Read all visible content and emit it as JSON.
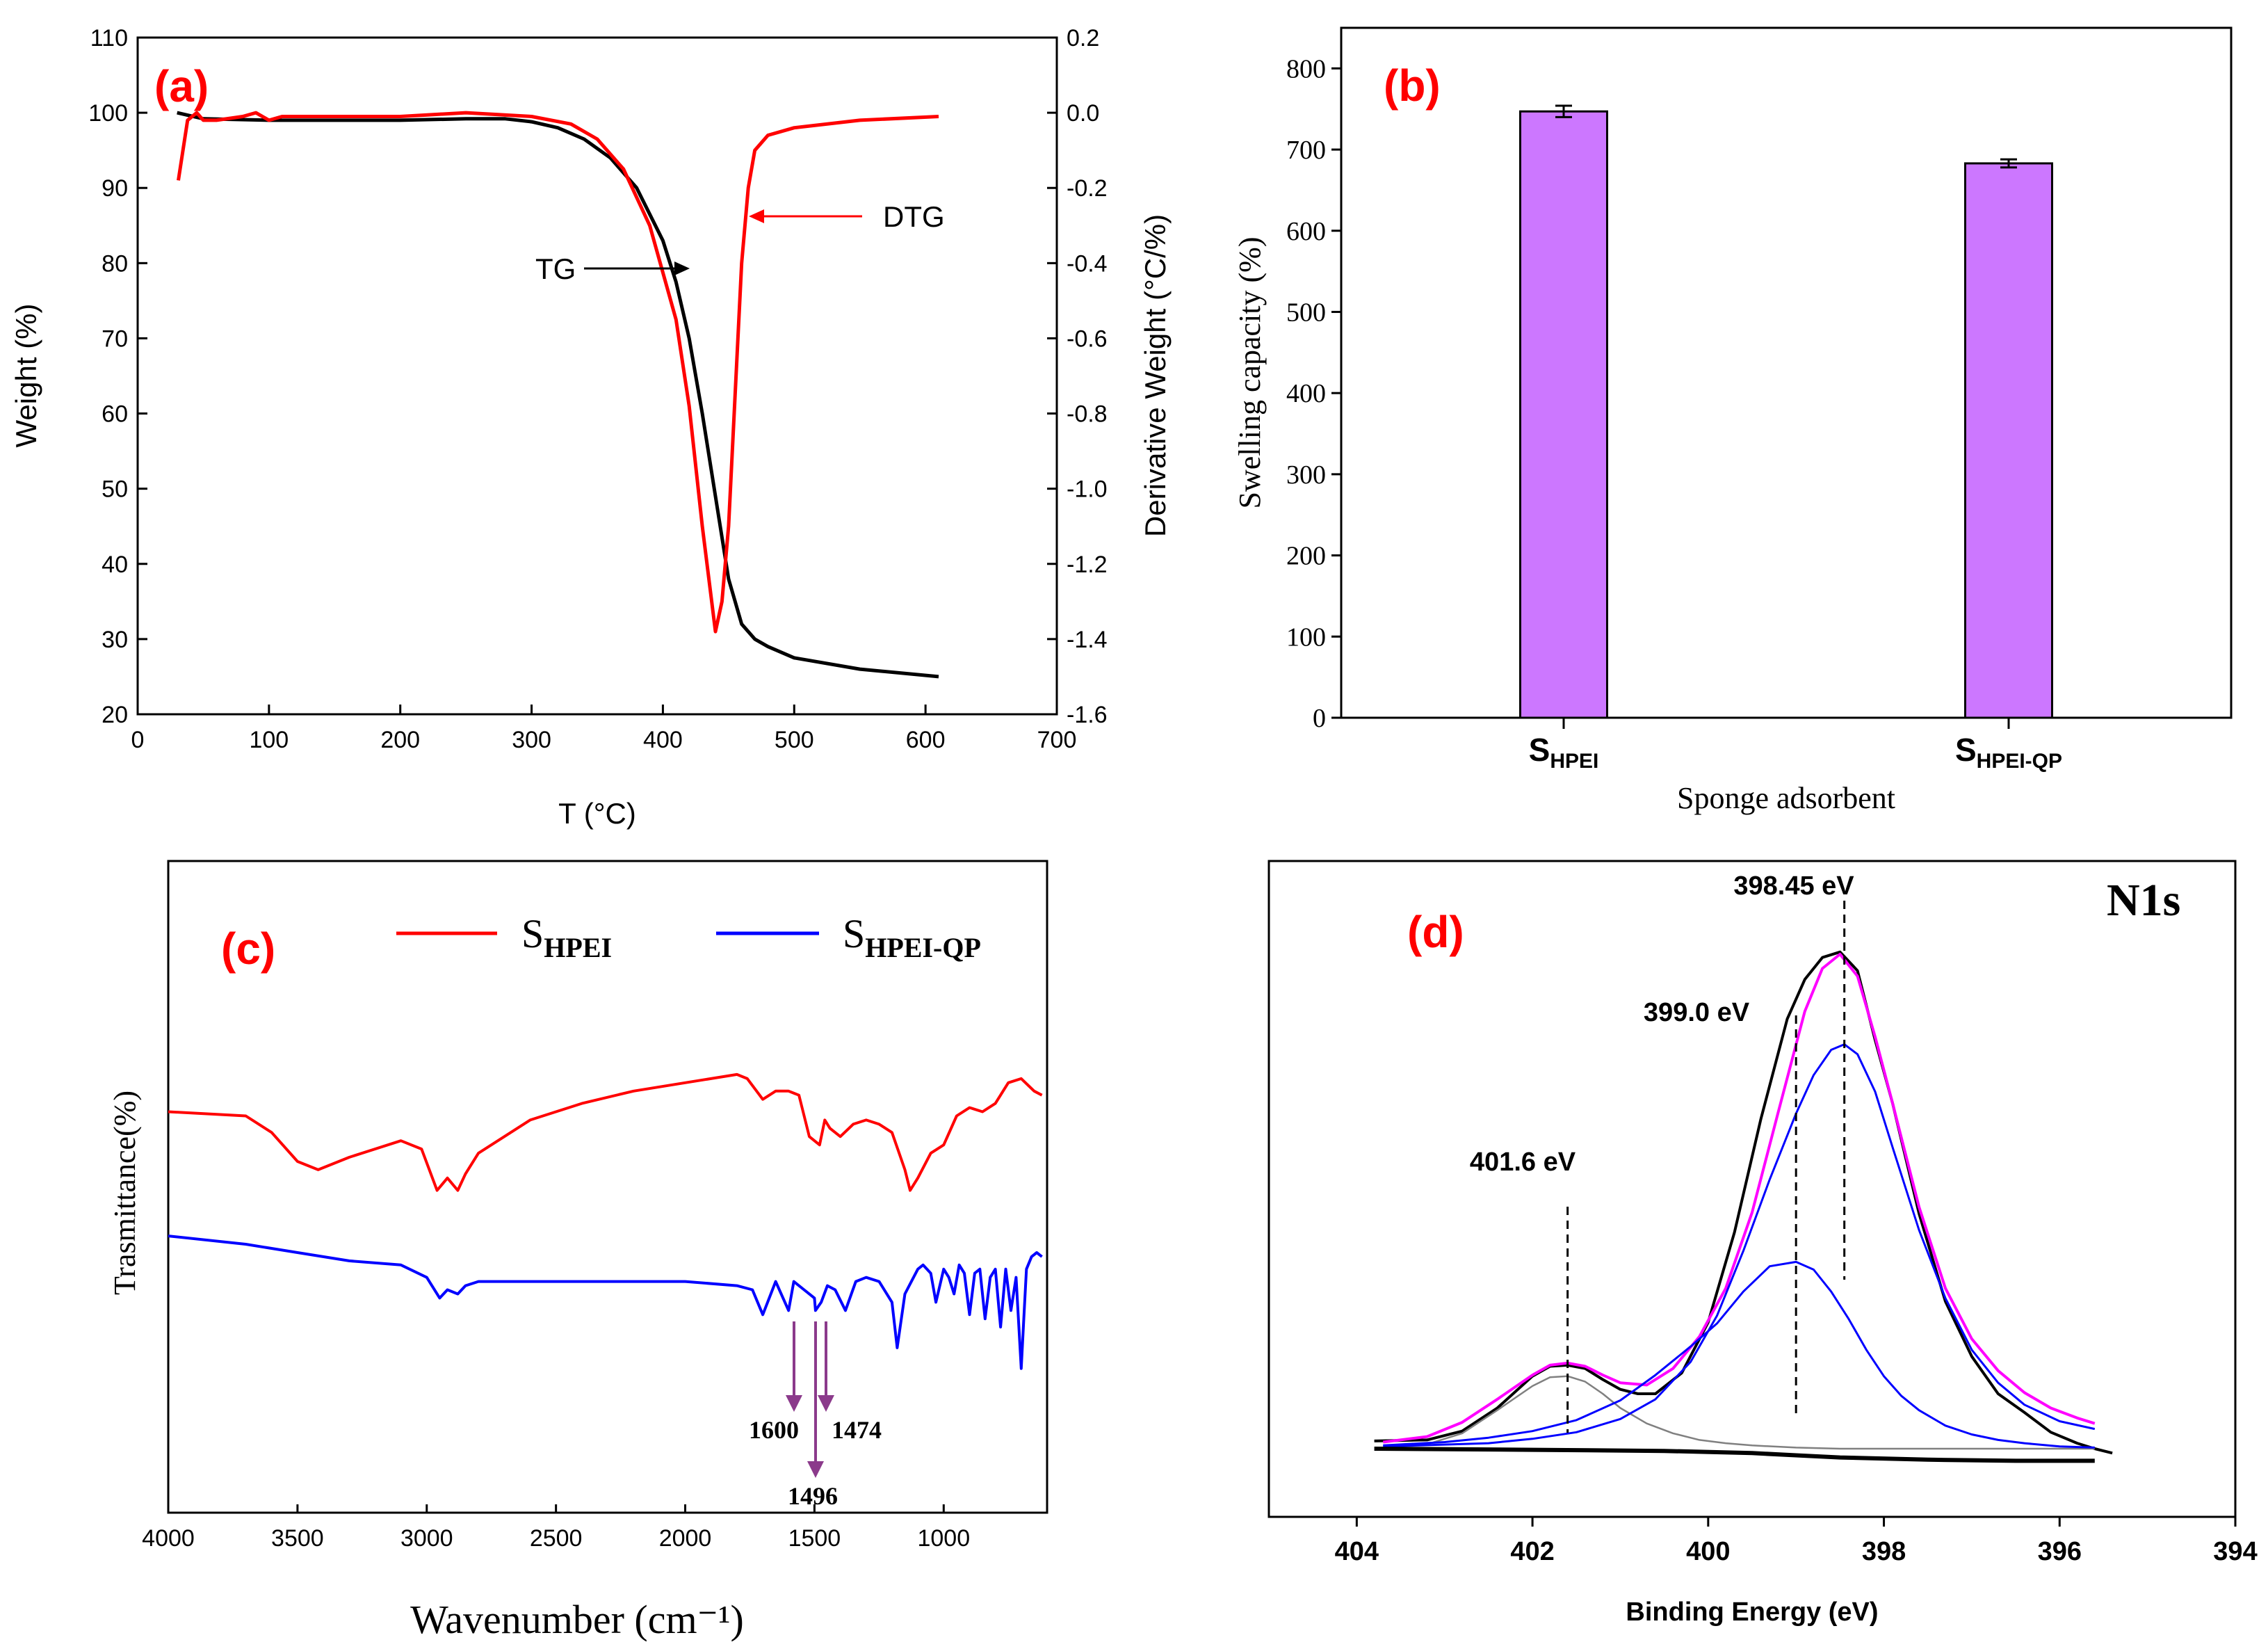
{
  "chart_data": [
    {
      "panel": "(a)",
      "type": "line",
      "xlabel": "T (°C)",
      "ylabel": "Weight (%)",
      "y2label": "Derivative Weight (°C/%)",
      "xlim": [
        0,
        700
      ],
      "ylim": [
        20,
        110
      ],
      "y2lim": [
        -1.6,
        0.2
      ],
      "xticks": [
        "0",
        "100",
        "200",
        "300",
        "400",
        "500",
        "600",
        "700"
      ],
      "yticks": [
        "20",
        "30",
        "40",
        "50",
        "60",
        "70",
        "80",
        "90",
        "100",
        "110"
      ],
      "y2ticks": [
        "-1.6",
        "-1.4",
        "-1.2",
        "-1.0",
        "-0.8",
        "-0.6",
        "-0.4",
        "-0.2",
        "0.0",
        "0.2"
      ],
      "series": [
        {
          "name": "TG",
          "axis": "left",
          "color": "#000000",
          "x": [
            30,
            50,
            100,
            150,
            200,
            250,
            280,
            300,
            320,
            340,
            360,
            380,
            400,
            410,
            420,
            430,
            440,
            450,
            460,
            470,
            480,
            500,
            550,
            610
          ],
          "y": [
            100,
            99.2,
            99,
            99,
            99,
            99.2,
            99.2,
            98.8,
            98,
            96.5,
            94,
            90,
            83,
            77.5,
            70,
            60,
            49,
            38,
            32,
            30,
            29,
            27.5,
            26,
            25
          ]
        },
        {
          "name": "DTG",
          "axis": "right",
          "color": "#ff0000",
          "x": [
            31,
            38,
            45,
            50,
            60,
            80,
            90,
            100,
            110,
            150,
            200,
            250,
            300,
            330,
            350,
            370,
            390,
            410,
            420,
            430,
            440,
            445,
            450,
            455,
            460,
            465,
            470,
            480,
            500,
            550,
            610
          ],
          "y": [
            -0.18,
            -0.02,
            0.0,
            -0.02,
            -0.02,
            -0.01,
            0.0,
            -0.02,
            -0.01,
            -0.01,
            -0.01,
            0.0,
            -0.01,
            -0.03,
            -0.07,
            -0.15,
            -0.3,
            -0.55,
            -0.78,
            -1.1,
            -1.38,
            -1.3,
            -1.1,
            -0.75,
            -0.4,
            -0.2,
            -0.1,
            -0.06,
            -0.04,
            -0.02,
            -0.01
          ]
        }
      ],
      "annotations": [
        {
          "text": "TG",
          "color": "#000000"
        },
        {
          "text": "DTG",
          "color": "#ff0000"
        }
      ]
    },
    {
      "panel": "(b)",
      "type": "bar",
      "xlabel": "Sponge adsorbent",
      "ylabel": "Swelling capacity (%)",
      "ylim": [
        0,
        850
      ],
      "yticks": [
        "0",
        "100",
        "200",
        "300",
        "400",
        "500",
        "600",
        "700",
        "800"
      ],
      "categories": [
        {
          "base": "S",
          "sub": "HPEI"
        },
        {
          "base": "S",
          "sub": "HPEI-QP"
        }
      ],
      "values": [
        747,
        683
      ],
      "errors": [
        7,
        5
      ],
      "bar_color": "#cc77ff"
    },
    {
      "panel": "(c)",
      "type": "line",
      "xlabel": "Wavenumber (cm⁻¹)",
      "ylabel": "Trasmittance(%)",
      "xlim": [
        4000,
        600
      ],
      "xticks": [
        "4000",
        "3500",
        "3000",
        "2500",
        "2000",
        "1500",
        "1000"
      ],
      "legend": [
        {
          "base": "S",
          "sub": "HPEI",
          "color": "#ff0000"
        },
        {
          "base": "S",
          "sub": "HPEI-QP",
          "color": "#0000ff"
        }
      ],
      "series": [
        {
          "color": "#ff0000",
          "x": [
            4000,
            3700,
            3600,
            3500,
            3420,
            3300,
            3100,
            3020,
            2960,
            2920,
            2880,
            2850,
            2800,
            2600,
            2400,
            2200,
            2000,
            1800,
            1760,
            1700,
            1650,
            1600,
            1560,
            1520,
            1480,
            1460,
            1440,
            1400,
            1350,
            1300,
            1250,
            1200,
            1150,
            1130,
            1100,
            1050,
            1000,
            950,
            900,
            850,
            800,
            750,
            700,
            650,
            620
          ],
          "y": [
            98,
            97,
            93,
            86,
            84,
            87,
            91,
            89,
            79,
            82,
            79,
            83,
            88,
            96,
            100,
            103,
            105,
            107,
            106,
            101,
            103,
            103,
            102,
            92,
            90,
            96,
            94,
            92,
            95,
            96,
            95,
            93,
            84,
            79,
            82,
            88,
            90,
            97,
            99,
            98,
            100,
            105,
            106,
            103,
            102
          ]
        },
        {
          "color": "#0000ff",
          "x": [
            4000,
            3700,
            3500,
            3300,
            3100,
            3000,
            2950,
            2920,
            2880,
            2850,
            2800,
            2600,
            2400,
            2200,
            2000,
            1800,
            1740,
            1700,
            1650,
            1600,
            1580,
            1540,
            1500,
            1496,
            1474,
            1450,
            1420,
            1380,
            1340,
            1300,
            1250,
            1200,
            1180,
            1150,
            1100,
            1080,
            1050,
            1030,
            1000,
            980,
            960,
            940,
            920,
            900,
            880,
            860,
            840,
            820,
            800,
            780,
            760,
            740,
            720,
            700,
            690,
            680,
            660,
            640,
            620
          ],
          "y": [
            68,
            66,
            64,
            62,
            61,
            58,
            53,
            55,
            54,
            56,
            57,
            57,
            57,
            57,
            57,
            56,
            55,
            49,
            57,
            50,
            57,
            55,
            53,
            50,
            52,
            56,
            55,
            50,
            57,
            58,
            57,
            52,
            41,
            54,
            60,
            61,
            59,
            52,
            60,
            58,
            54,
            61,
            59,
            49,
            59,
            60,
            48,
            58,
            60,
            46,
            60,
            50,
            58,
            36,
            48,
            60,
            63,
            64,
            63
          ]
        }
      ],
      "annotations": [
        "1600",
        "1496",
        "1474"
      ]
    },
    {
      "panel": "(d)",
      "type": "line",
      "xlabel": "Binding Energy (eV)",
      "title": "N1s",
      "xlim": [
        405,
        394
      ],
      "xticks": [
        "404",
        "402",
        "400",
        "398",
        "396",
        "394"
      ],
      "series": [
        {
          "color": "#000000",
          "x": [
            403.8,
            403.2,
            402.8,
            402.4,
            402.0,
            401.8,
            401.6,
            401.4,
            401.2,
            401.0,
            400.8,
            400.6,
            400.3,
            400.0,
            399.7,
            399.4,
            399.1,
            398.9,
            398.7,
            398.5,
            398.3,
            398.1,
            397.9,
            397.6,
            397.3,
            397.0,
            396.7,
            396.4,
            396.1,
            395.8,
            395.6,
            395.4
          ],
          "y": [
            0.7,
            0.8,
            1.6,
            3.7,
            6.6,
            7.5,
            7.6,
            7.3,
            6.3,
            5.4,
            5.0,
            5.0,
            6.9,
            11.5,
            19.7,
            30.0,
            39.1,
            42.7,
            44.7,
            45.2,
            43.5,
            37.2,
            31.4,
            21.4,
            13.4,
            8.4,
            5.0,
            3.3,
            1.5,
            0.5,
            0.0,
            -0.4
          ]
        },
        {
          "color": "#ff00ff",
          "x": [
            403.7,
            403.2,
            402.8,
            402.4,
            402.0,
            401.8,
            401.6,
            401.4,
            401.2,
            401.0,
            400.7,
            400.4,
            400.1,
            399.8,
            399.5,
            399.2,
            398.9,
            398.7,
            398.5,
            398.3,
            398.1,
            397.9,
            397.6,
            397.3,
            397.0,
            396.7,
            396.4,
            396.1,
            395.8,
            395.6
          ],
          "y": [
            0.6,
            1.1,
            2.4,
            4.5,
            6.7,
            7.6,
            7.8,
            7.5,
            6.7,
            6.0,
            5.8,
            7.3,
            10.2,
            14.6,
            21.5,
            30.7,
            39.8,
            43.7,
            45.0,
            43.0,
            37.5,
            31.4,
            22.0,
            14.6,
            10.0,
            7.1,
            5.1,
            3.7,
            2.8,
            2.3
          ]
        },
        {
          "color": "#808080",
          "x": [
            403.7,
            403.2,
            402.8,
            402.4,
            402.0,
            401.8,
            401.6,
            401.4,
            401.2,
            401.0,
            400.7,
            400.4,
            400.1,
            399.8,
            399.5,
            399.0,
            398.5,
            398.0,
            397.5,
            397.0,
            396.5,
            396.0,
            395.6
          ],
          "y": [
            0.1,
            0.4,
            1.4,
            3.5,
            5.7,
            6.5,
            6.6,
            6.1,
            5.0,
            3.7,
            2.3,
            1.4,
            0.8,
            0.5,
            0.3,
            0.1,
            0.0,
            0.0,
            0.0,
            0.0,
            0.0,
            0.0,
            0.0
          ]
        },
        {
          "color": "#0000ff",
          "x": [
            403.7,
            403.0,
            402.5,
            402.0,
            401.5,
            401.0,
            400.6,
            400.2,
            399.9,
            399.6,
            399.3,
            399.0,
            398.8,
            398.6,
            398.4,
            398.2,
            398.0,
            397.8,
            397.6,
            397.3,
            397.0,
            396.7,
            396.4,
            396.0,
            395.6
          ],
          "y": [
            0.3,
            0.6,
            1.0,
            1.6,
            2.6,
            4.4,
            6.7,
            9.3,
            11.4,
            14.3,
            16.6,
            17.0,
            16.3,
            14.3,
            11.8,
            9.0,
            6.6,
            4.8,
            3.5,
            2.1,
            1.3,
            0.8,
            0.5,
            0.2,
            0.1
          ]
        },
        {
          "color": "#0000ff",
          "x": [
            403.7,
            402.5,
            402.0,
            401.5,
            401.0,
            400.6,
            400.2,
            399.9,
            399.6,
            399.3,
            399.0,
            398.8,
            398.6,
            398.45,
            398.3,
            398.1,
            397.9,
            397.6,
            397.3,
            397.0,
            396.7,
            396.4,
            396.0,
            395.6
          ],
          "y": [
            0.2,
            0.5,
            0.9,
            1.5,
            2.7,
            4.5,
            7.9,
            12.1,
            18.0,
            24.5,
            30.5,
            34.0,
            36.3,
            36.8,
            35.9,
            32.5,
            27.4,
            19.9,
            13.7,
            9.0,
            6.0,
            4.0,
            2.5,
            1.8
          ]
        },
        {
          "color": "#000000",
          "x": [
            403.8,
            402.0,
            400.5,
            399.5,
            399.0,
            398.5,
            397.5,
            396.5,
            395.6
          ],
          "y": [
            0.0,
            -0.1,
            -0.2,
            -0.4,
            -0.6,
            -0.8,
            -1.0,
            -1.1,
            -1.1
          ]
        }
      ],
      "peaks": [
        {
          "x": 401.6,
          "label": "401.6 eV"
        },
        {
          "x": 399.0,
          "label": "399.0 eV"
        },
        {
          "x": 398.45,
          "label": "398.45 eV"
        }
      ]
    }
  ]
}
